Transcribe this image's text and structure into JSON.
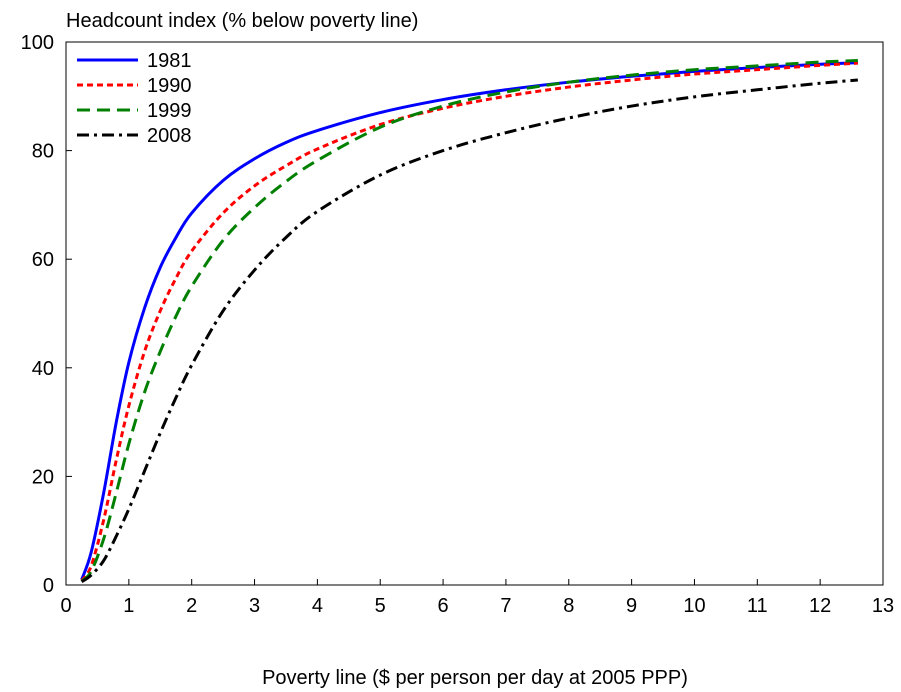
{
  "chart_data": {
    "type": "line",
    "ylabel": "Headcount index (% below poverty line)",
    "xlabel": "Poverty line ($ per person per day at 2005 PPP)",
    "xlim": [
      0,
      13
    ],
    "ylim": [
      0,
      100
    ],
    "xticks": [
      "0",
      "1",
      "2",
      "3",
      "4",
      "5",
      "6",
      "7",
      "8",
      "9",
      "10",
      "11",
      "12",
      "13"
    ],
    "yticks": [
      "0",
      "20",
      "40",
      "60",
      "80",
      "100"
    ],
    "grid": false,
    "legend_position": "top-left",
    "series": [
      {
        "name": "1981",
        "color": "#0000ff",
        "dash": "solid",
        "points": [
          [
            0.25,
            1
          ],
          [
            0.4,
            6
          ],
          [
            0.6,
            17
          ],
          [
            0.8,
            30
          ],
          [
            1.0,
            41
          ],
          [
            1.25,
            51
          ],
          [
            1.5,
            58.5
          ],
          [
            1.75,
            64
          ],
          [
            2.0,
            68.5
          ],
          [
            2.5,
            74.5
          ],
          [
            3.0,
            78.5
          ],
          [
            3.5,
            81.5
          ],
          [
            4.0,
            83.7
          ],
          [
            5.0,
            87
          ],
          [
            6.0,
            89.4
          ],
          [
            7.0,
            91.2
          ],
          [
            8.0,
            92.6
          ],
          [
            9.0,
            93.7
          ],
          [
            10.0,
            94.6
          ],
          [
            11.0,
            95.3
          ],
          [
            12.0,
            95.9
          ],
          [
            12.6,
            96.2
          ]
        ]
      },
      {
        "name": "1990",
        "color": "#ff0000",
        "dash": "short",
        "points": [
          [
            0.25,
            0.8
          ],
          [
            0.4,
            3.5
          ],
          [
            0.6,
            12
          ],
          [
            0.8,
            23
          ],
          [
            1.0,
            33
          ],
          [
            1.25,
            43
          ],
          [
            1.5,
            50.5
          ],
          [
            1.75,
            56.5
          ],
          [
            2.0,
            61.5
          ],
          [
            2.5,
            68.5
          ],
          [
            3.0,
            73.5
          ],
          [
            3.5,
            77.2
          ],
          [
            4.0,
            80.3
          ],
          [
            5.0,
            84.8
          ],
          [
            6.0,
            87.8
          ],
          [
            7.0,
            90
          ],
          [
            8.0,
            91.7
          ],
          [
            9.0,
            93
          ],
          [
            10.0,
            94.1
          ],
          [
            11.0,
            94.9
          ],
          [
            12.0,
            95.7
          ],
          [
            12.6,
            96.1
          ]
        ]
      },
      {
        "name": "1999",
        "color": "#008000",
        "dash": "long",
        "points": [
          [
            0.25,
            0.7
          ],
          [
            0.4,
            2.5
          ],
          [
            0.6,
            8.5
          ],
          [
            0.8,
            17
          ],
          [
            1.0,
            26
          ],
          [
            1.25,
            35.5
          ],
          [
            1.5,
            43
          ],
          [
            1.75,
            49.5
          ],
          [
            2.0,
            55
          ],
          [
            2.5,
            63.5
          ],
          [
            3.0,
            69.5
          ],
          [
            3.5,
            74.3
          ],
          [
            4.0,
            78.2
          ],
          [
            5.0,
            84.3
          ],
          [
            6.0,
            88.2
          ],
          [
            7.0,
            90.8
          ],
          [
            8.0,
            92.6
          ],
          [
            9.0,
            93.9
          ],
          [
            10.0,
            94.9
          ],
          [
            11.0,
            95.6
          ],
          [
            12.0,
            96.3
          ],
          [
            12.6,
            96.6
          ]
        ]
      },
      {
        "name": "2008",
        "color": "#000000",
        "dash": "dashdot",
        "points": [
          [
            0.25,
            0.6
          ],
          [
            0.4,
            1.8
          ],
          [
            0.6,
            4.5
          ],
          [
            0.8,
            9
          ],
          [
            1.0,
            14
          ],
          [
            1.25,
            21
          ],
          [
            1.5,
            28
          ],
          [
            1.75,
            34.5
          ],
          [
            2.0,
            40.5
          ],
          [
            2.5,
            50.5
          ],
          [
            3.0,
            58
          ],
          [
            3.5,
            64
          ],
          [
            4.0,
            68.8
          ],
          [
            5.0,
            75.5
          ],
          [
            6.0,
            80
          ],
          [
            7.0,
            83.3
          ],
          [
            8.0,
            86
          ],
          [
            9.0,
            88.2
          ],
          [
            10.0,
            89.9
          ],
          [
            11.0,
            91.2
          ],
          [
            12.0,
            92.4
          ],
          [
            12.6,
            93
          ]
        ]
      }
    ]
  }
}
